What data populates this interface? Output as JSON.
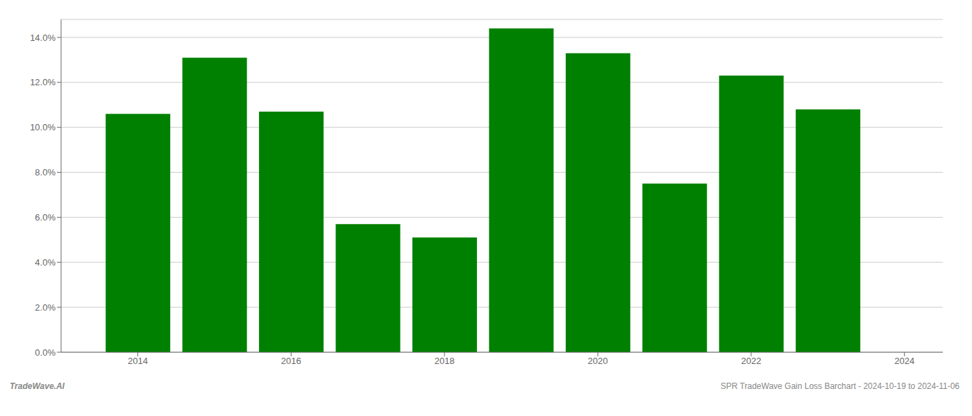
{
  "chart_data": {
    "type": "bar",
    "x": [
      2014,
      2015,
      2016,
      2017,
      2018,
      2019,
      2020,
      2021,
      2022,
      2023
    ],
    "values": [
      0.106,
      0.131,
      0.107,
      0.057,
      0.051,
      0.144,
      0.133,
      0.075,
      0.123,
      0.108
    ],
    "color": "#008000",
    "xlim": [
      2013.0,
      2024.5
    ],
    "xticks": [
      2014,
      2016,
      2018,
      2020,
      2022,
      2024
    ],
    "ylim": [
      0,
      0.148
    ],
    "yticks": [
      {
        "value": 0.0,
        "label": "0.0%"
      },
      {
        "value": 0.02,
        "label": "2.0%"
      },
      {
        "value": 0.04,
        "label": "4.0%"
      },
      {
        "value": 0.06,
        "label": "6.0%"
      },
      {
        "value": 0.08,
        "label": "8.0%"
      },
      {
        "value": 0.1,
        "label": "10.0%"
      },
      {
        "value": 0.12,
        "label": "12.0%"
      },
      {
        "value": 0.14,
        "label": "14.0%"
      }
    ],
    "grid": true,
    "annotations": [
      "TradeWave.AI",
      "SPR TradeWave Gain Loss Barchart - 2024-10-19 to 2024-11-06"
    ]
  }
}
